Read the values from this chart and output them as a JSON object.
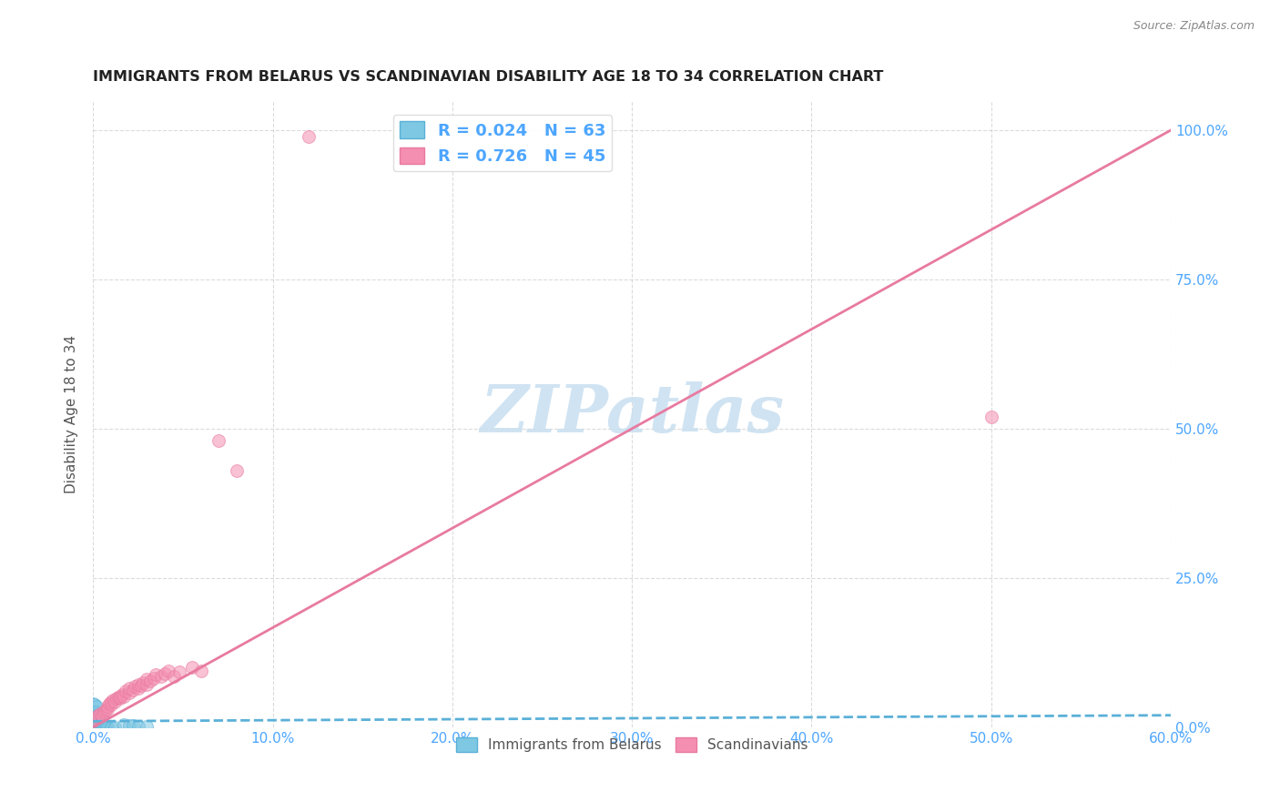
{
  "title": "IMMIGRANTS FROM BELARUS VS SCANDINAVIAN DISABILITY AGE 18 TO 34 CORRELATION CHART",
  "source": "Source: ZipAtlas.com",
  "xlabel_ticks": [
    "0.0%",
    "10.0%",
    "20.0%",
    "30.0%",
    "40.0%",
    "50.0%",
    "60.0%"
  ],
  "ylabel_ticks": [
    "0.0%",
    "25.0%",
    "50.0%",
    "75.0%",
    "100.0%"
  ],
  "xlim": [
    0.0,
    0.6
  ],
  "ylim": [
    0.0,
    1.05
  ],
  "ylabel": "Disability Age 18 to 34",
  "legend_items": [
    {
      "label": "R = 0.024   N = 63",
      "color": "#7ec8e3"
    },
    {
      "label": "R = 0.726   N = 45",
      "color": "#f48fb1"
    }
  ],
  "legend_labels_bottom": [
    "Immigrants from Belarus",
    "Scandinavians"
  ],
  "watermark": "ZIPatlas",
  "watermark_color": "#c8dff0",
  "background_color": "#ffffff",
  "grid_color": "#cccccc",
  "title_color": "#222222",
  "axis_label_color": "#4da6ff",
  "blue_scatter": [
    [
      0.0,
      0.0
    ],
    [
      0.0,
      0.0
    ],
    [
      0.0,
      0.0
    ],
    [
      0.0,
      0.0
    ],
    [
      0.0,
      0.0
    ],
    [
      0.0,
      0.0
    ],
    [
      0.0,
      0.0
    ],
    [
      0.0,
      0.0
    ],
    [
      0.0,
      0.002
    ],
    [
      0.0,
      0.002
    ],
    [
      0.0,
      0.002
    ],
    [
      0.0,
      0.004
    ],
    [
      0.0,
      0.004
    ],
    [
      0.0,
      0.005
    ],
    [
      0.0,
      0.006
    ],
    [
      0.0,
      0.008
    ],
    [
      0.0,
      0.01
    ],
    [
      0.0,
      0.012
    ],
    [
      0.0,
      0.015
    ],
    [
      0.0,
      0.018
    ],
    [
      0.001,
      0.0
    ],
    [
      0.001,
      0.002
    ],
    [
      0.001,
      0.004
    ],
    [
      0.001,
      0.006
    ],
    [
      0.001,
      0.008
    ],
    [
      0.001,
      0.01
    ],
    [
      0.001,
      0.012
    ],
    [
      0.001,
      0.015
    ],
    [
      0.002,
      0.0
    ],
    [
      0.002,
      0.002
    ],
    [
      0.002,
      0.004
    ],
    [
      0.002,
      0.006
    ],
    [
      0.002,
      0.008
    ],
    [
      0.002,
      0.01
    ],
    [
      0.003,
      0.0
    ],
    [
      0.003,
      0.002
    ],
    [
      0.003,
      0.004
    ],
    [
      0.003,
      0.008
    ],
    [
      0.004,
      0.0
    ],
    [
      0.004,
      0.002
    ],
    [
      0.004,
      0.005
    ],
    [
      0.005,
      0.0
    ],
    [
      0.005,
      0.002
    ],
    [
      0.005,
      0.004
    ],
    [
      0.006,
      0.0
    ],
    [
      0.006,
      0.002
    ],
    [
      0.007,
      0.0
    ],
    [
      0.007,
      0.002
    ],
    [
      0.008,
      0.0
    ],
    [
      0.01,
      0.0
    ],
    [
      0.012,
      0.0
    ],
    [
      0.0,
      0.04
    ],
    [
      0.001,
      0.038
    ],
    [
      0.002,
      0.035
    ],
    [
      0.0,
      0.022
    ],
    [
      0.001,
      0.025
    ],
    [
      0.002,
      0.02
    ],
    [
      0.003,
      0.018
    ],
    [
      0.017,
      0.004
    ],
    [
      0.02,
      0.003
    ],
    [
      0.022,
      0.003
    ],
    [
      0.025,
      0.002
    ],
    [
      0.03,
      0.002
    ]
  ],
  "pink_scatter": [
    [
      0.0,
      0.01
    ],
    [
      0.002,
      0.018
    ],
    [
      0.003,
      0.02
    ],
    [
      0.004,
      0.022
    ],
    [
      0.005,
      0.02
    ],
    [
      0.006,
      0.025
    ],
    [
      0.007,
      0.028
    ],
    [
      0.008,
      0.03
    ],
    [
      0.008,
      0.035
    ],
    [
      0.009,
      0.04
    ],
    [
      0.01,
      0.038
    ],
    [
      0.01,
      0.042
    ],
    [
      0.011,
      0.045
    ],
    [
      0.012,
      0.042
    ],
    [
      0.013,
      0.048
    ],
    [
      0.014,
      0.05
    ],
    [
      0.015,
      0.048
    ],
    [
      0.015,
      0.052
    ],
    [
      0.016,
      0.055
    ],
    [
      0.017,
      0.052
    ],
    [
      0.018,
      0.06
    ],
    [
      0.02,
      0.058
    ],
    [
      0.02,
      0.065
    ],
    [
      0.022,
      0.062
    ],
    [
      0.023,
      0.068
    ],
    [
      0.025,
      0.065
    ],
    [
      0.025,
      0.072
    ],
    [
      0.027,
      0.07
    ],
    [
      0.028,
      0.075
    ],
    [
      0.03,
      0.072
    ],
    [
      0.03,
      0.08
    ],
    [
      0.032,
      0.078
    ],
    [
      0.034,
      0.082
    ],
    [
      0.035,
      0.088
    ],
    [
      0.038,
      0.085
    ],
    [
      0.04,
      0.09
    ],
    [
      0.042,
      0.095
    ],
    [
      0.045,
      0.085
    ],
    [
      0.048,
      0.092
    ],
    [
      0.055,
      0.1
    ],
    [
      0.06,
      0.095
    ],
    [
      0.07,
      0.48
    ],
    [
      0.08,
      0.43
    ],
    [
      0.5,
      0.52
    ],
    [
      0.12,
      0.99
    ]
  ],
  "blue_line_x": [
    0.0,
    0.6
  ],
  "blue_line_y": [
    0.01,
    0.02
  ],
  "pink_line_x": [
    0.0,
    0.6
  ],
  "pink_line_y": [
    0.0,
    1.0
  ],
  "scatter_size": 100,
  "scatter_alpha": 0.55,
  "line_width": 2.0
}
